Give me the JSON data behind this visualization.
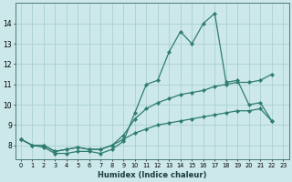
{
  "xlabel": "Humidex (Indice chaleur)",
  "x": [
    0,
    1,
    2,
    3,
    4,
    5,
    6,
    7,
    8,
    9,
    10,
    11,
    12,
    13,
    14,
    15,
    16,
    17,
    18,
    19,
    20,
    21,
    22,
    23
  ],
  "line1": [
    8.3,
    8.0,
    7.9,
    7.6,
    7.6,
    7.7,
    7.7,
    7.6,
    7.8,
    8.2,
    9.6,
    11.0,
    11.2,
    12.6,
    13.6,
    13.0,
    14.0,
    14.5,
    11.1,
    11.2,
    10.0,
    10.1,
    9.2,
    null
  ],
  "line2": [
    8.3,
    8.0,
    8.0,
    7.7,
    7.8,
    7.9,
    7.8,
    7.8,
    8.0,
    8.5,
    9.3,
    9.8,
    10.1,
    10.3,
    10.5,
    10.6,
    10.7,
    10.9,
    11.0,
    11.1,
    11.1,
    11.2,
    11.5,
    null
  ],
  "line3": [
    8.3,
    8.0,
    8.0,
    7.7,
    7.8,
    7.9,
    7.8,
    7.8,
    8.0,
    8.3,
    8.6,
    8.8,
    9.0,
    9.1,
    9.2,
    9.3,
    9.4,
    9.5,
    9.6,
    9.7,
    9.7,
    9.8,
    9.2,
    null
  ],
  "line_color": "#2e7d6d",
  "bg_color": "#cce8ea",
  "grid_color": "#aacfd4",
  "ylim": [
    7.3,
    15.0
  ],
  "yticks": [
    8,
    9,
    10,
    11,
    12,
    13,
    14
  ],
  "xlim": [
    -0.5,
    23.5
  ],
  "xticks": [
    0,
    1,
    2,
    3,
    4,
    5,
    6,
    7,
    8,
    9,
    10,
    11,
    12,
    13,
    14,
    15,
    16,
    17,
    18,
    19,
    20,
    21,
    22,
    23
  ]
}
